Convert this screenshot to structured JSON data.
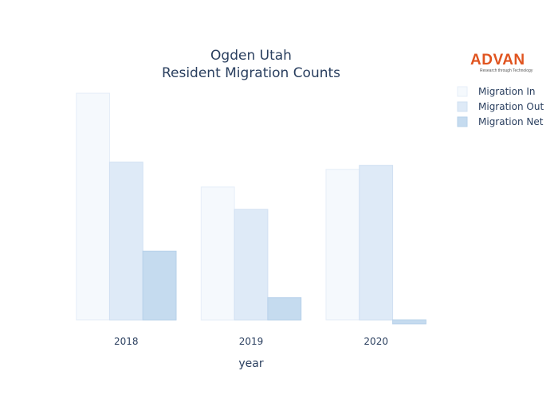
{
  "logo": {
    "word": "ADVAN",
    "tagline": "Research through Technology"
  },
  "chart_data": {
    "type": "bar",
    "title_lines": [
      "Ogden Utah",
      "Resident Migration Counts"
    ],
    "xlabel": "year",
    "ylabel": "",
    "categories": [
      "2018",
      "2019",
      "2020"
    ],
    "series": [
      {
        "name": "Migration In",
        "color": "#f5f9fd",
        "stroke": "#e6eef8",
        "values": [
          2830,
          1660,
          1880
        ]
      },
      {
        "name": "Migration Out",
        "color": "#deeaf7",
        "stroke": "#d0e0f2",
        "values": [
          1970,
          1380,
          1930
        ]
      },
      {
        "name": "Migration Net",
        "color": "#c5dbef",
        "stroke": "#b7d1ea",
        "values": [
          860,
          280,
          -50
        ]
      }
    ],
    "ylim": [
      -80,
      3000
    ],
    "grid": false,
    "legend": "top-right"
  }
}
